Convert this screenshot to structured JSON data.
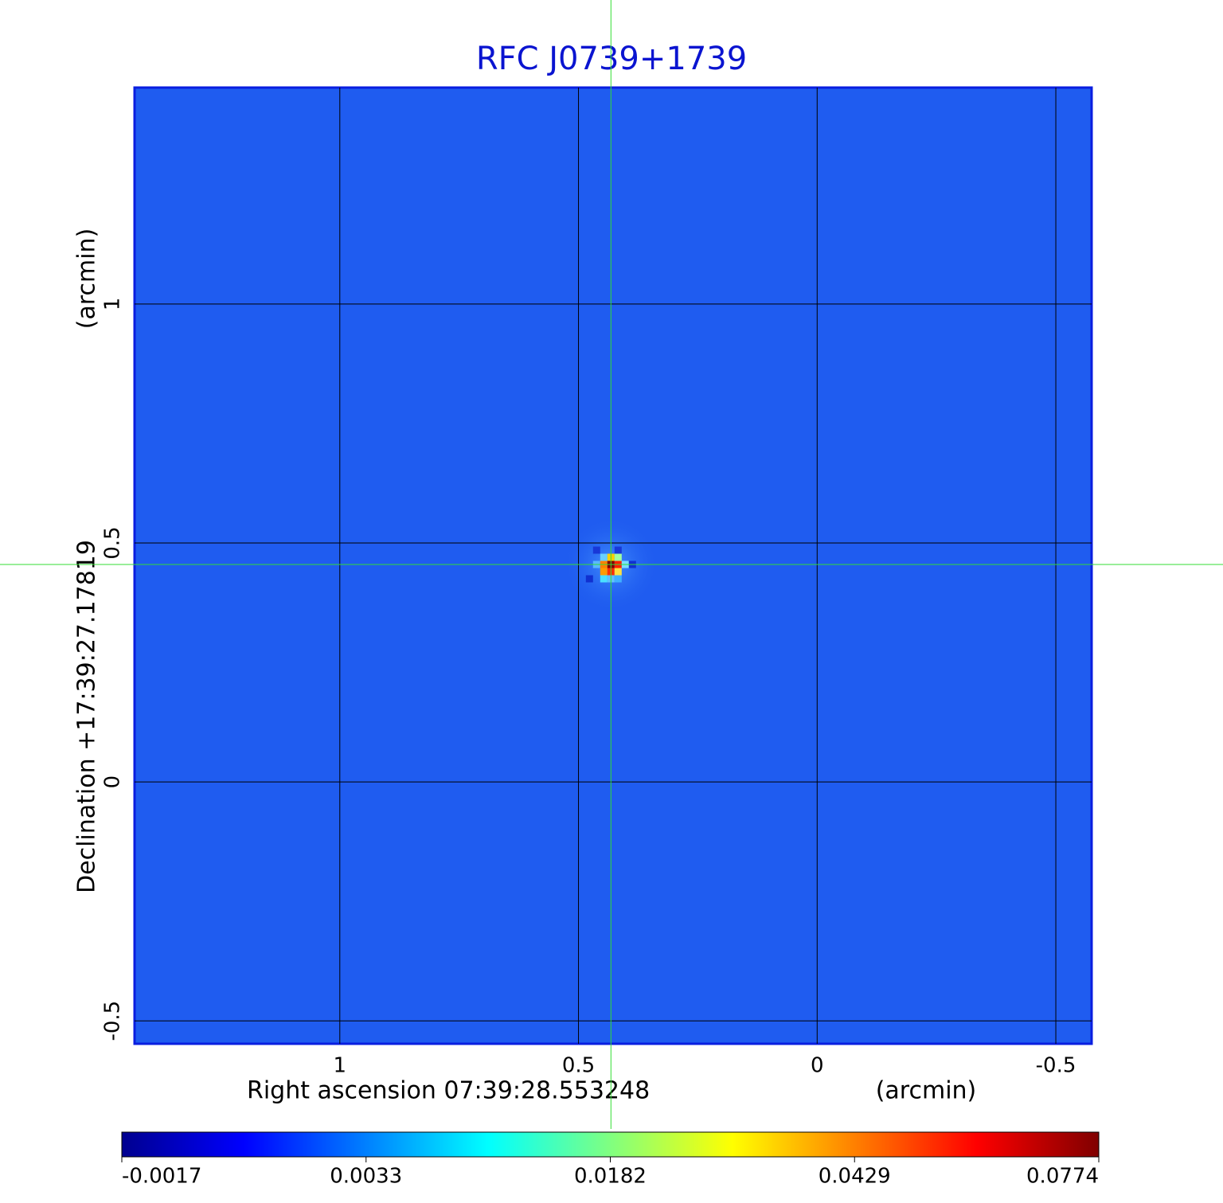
{
  "chart_data": {
    "type": "image",
    "title": "RFC J0739+1739",
    "xlabel": "Right ascension  07:39:28.553248",
    "xunit": "(arcmin)",
    "ylabel": "Declination  +17:39:27.17819",
    "yunit": "(arcmin)",
    "xlim": [
      1.43,
      -0.575
    ],
    "ylim": [
      -0.548,
      1.453
    ],
    "xticks": [
      1.0,
      0.5,
      0.0,
      -0.5
    ],
    "yticks": [
      -0.5,
      0.0,
      0.5,
      1.0
    ],
    "grid": true,
    "background_color": "#1f5cf0",
    "crosshair": {
      "x": 0.432,
      "y": 0.455,
      "color": "#33dd33"
    },
    "colorbar": {
      "ticks": [
        -0.0017,
        0.0033,
        0.0182,
        0.0429,
        0.0774
      ],
      "colors": [
        "#00008f",
        "#0000ff",
        "#0080ff",
        "#00ffff",
        "#80ff80",
        "#ffff00",
        "#ff8000",
        "#ff0000",
        "#800000"
      ]
    }
  }
}
